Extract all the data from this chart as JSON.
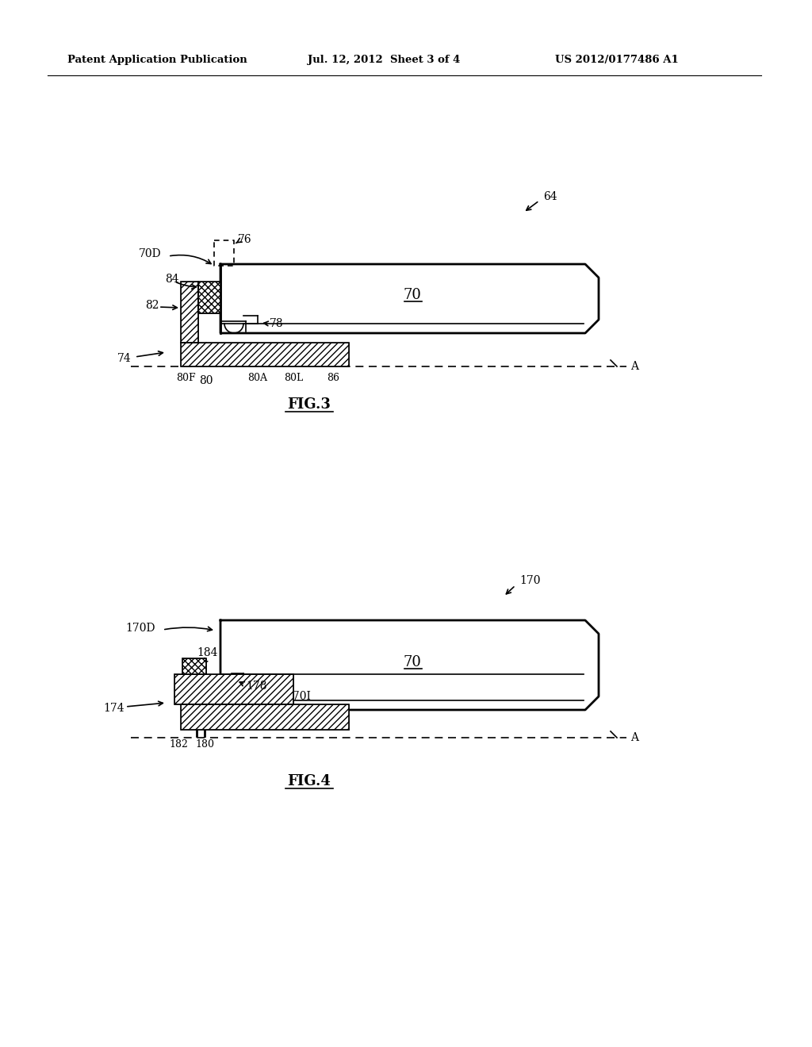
{
  "header_left": "Patent Application Publication",
  "header_mid": "Jul. 12, 2012  Sheet 3 of 4",
  "header_right": "US 2012/0177486 A1",
  "fig3_title": "FIG.3",
  "fig4_title": "FIG.4",
  "bg_color": "#ffffff",
  "line_color": "#000000"
}
